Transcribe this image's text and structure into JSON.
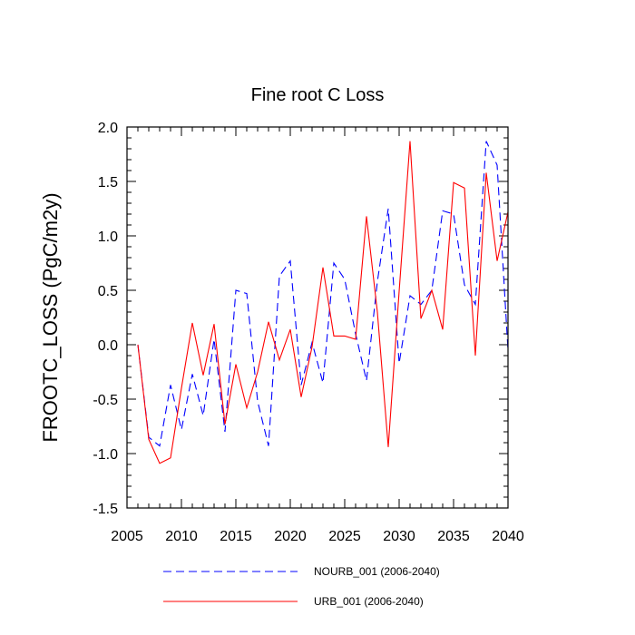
{
  "chart_data": {
    "type": "line",
    "title": "Fine root C Loss",
    "xlabel": "",
    "ylabel": "FROOTC_LOSS  (PgC/m2y)",
    "xlim": [
      2005,
      2040
    ],
    "ylim": [
      -1.5,
      2.0
    ],
    "x_ticks": [
      "2005",
      "2010",
      "2015",
      "2020",
      "2025",
      "2030",
      "2035",
      "2040"
    ],
    "y_ticks": [
      "-1.5",
      "-1.0",
      "-0.5",
      "0.0",
      "0.5",
      "1.0",
      "1.5",
      "2.0"
    ],
    "x": [
      2006,
      2007,
      2008,
      2009,
      2010,
      2011,
      2012,
      2013,
      2014,
      2015,
      2016,
      2017,
      2018,
      2019,
      2020,
      2021,
      2022,
      2023,
      2024,
      2025,
      2026,
      2027,
      2028,
      2029,
      2030,
      2031,
      2032,
      2033,
      2034,
      2035,
      2036,
      2037,
      2038,
      2039,
      2040
    ],
    "series": [
      {
        "name": "NOURB_001 (2006-2040)",
        "color": "#0000ff",
        "dash": "dashed",
        "values": [
          0.0,
          -0.85,
          -0.93,
          -0.37,
          -0.78,
          -0.27,
          -0.65,
          0.05,
          -0.8,
          0.5,
          0.47,
          -0.52,
          -0.93,
          0.63,
          0.77,
          -0.37,
          0.02,
          -0.35,
          0.75,
          0.6,
          0.1,
          -0.33,
          0.58,
          1.25,
          -0.17,
          0.45,
          0.37,
          0.5,
          1.23,
          1.2,
          0.55,
          0.37,
          1.87,
          1.65,
          -0.05
        ]
      },
      {
        "name": "URB_001 (2006-2040)",
        "color": "#ff0000",
        "dash": "solid",
        "values": [
          0.0,
          -0.87,
          -1.09,
          -1.04,
          -0.4,
          0.2,
          -0.28,
          0.19,
          -0.73,
          -0.18,
          -0.58,
          -0.25,
          0.21,
          -0.14,
          0.14,
          -0.48,
          -0.02,
          0.71,
          0.08,
          0.08,
          0.05,
          1.18,
          0.3,
          -0.94,
          0.49,
          1.87,
          0.24,
          0.5,
          0.14,
          1.49,
          1.44,
          -0.1,
          1.58,
          0.77,
          1.22
        ]
      }
    ],
    "legend_position": "bottom"
  }
}
